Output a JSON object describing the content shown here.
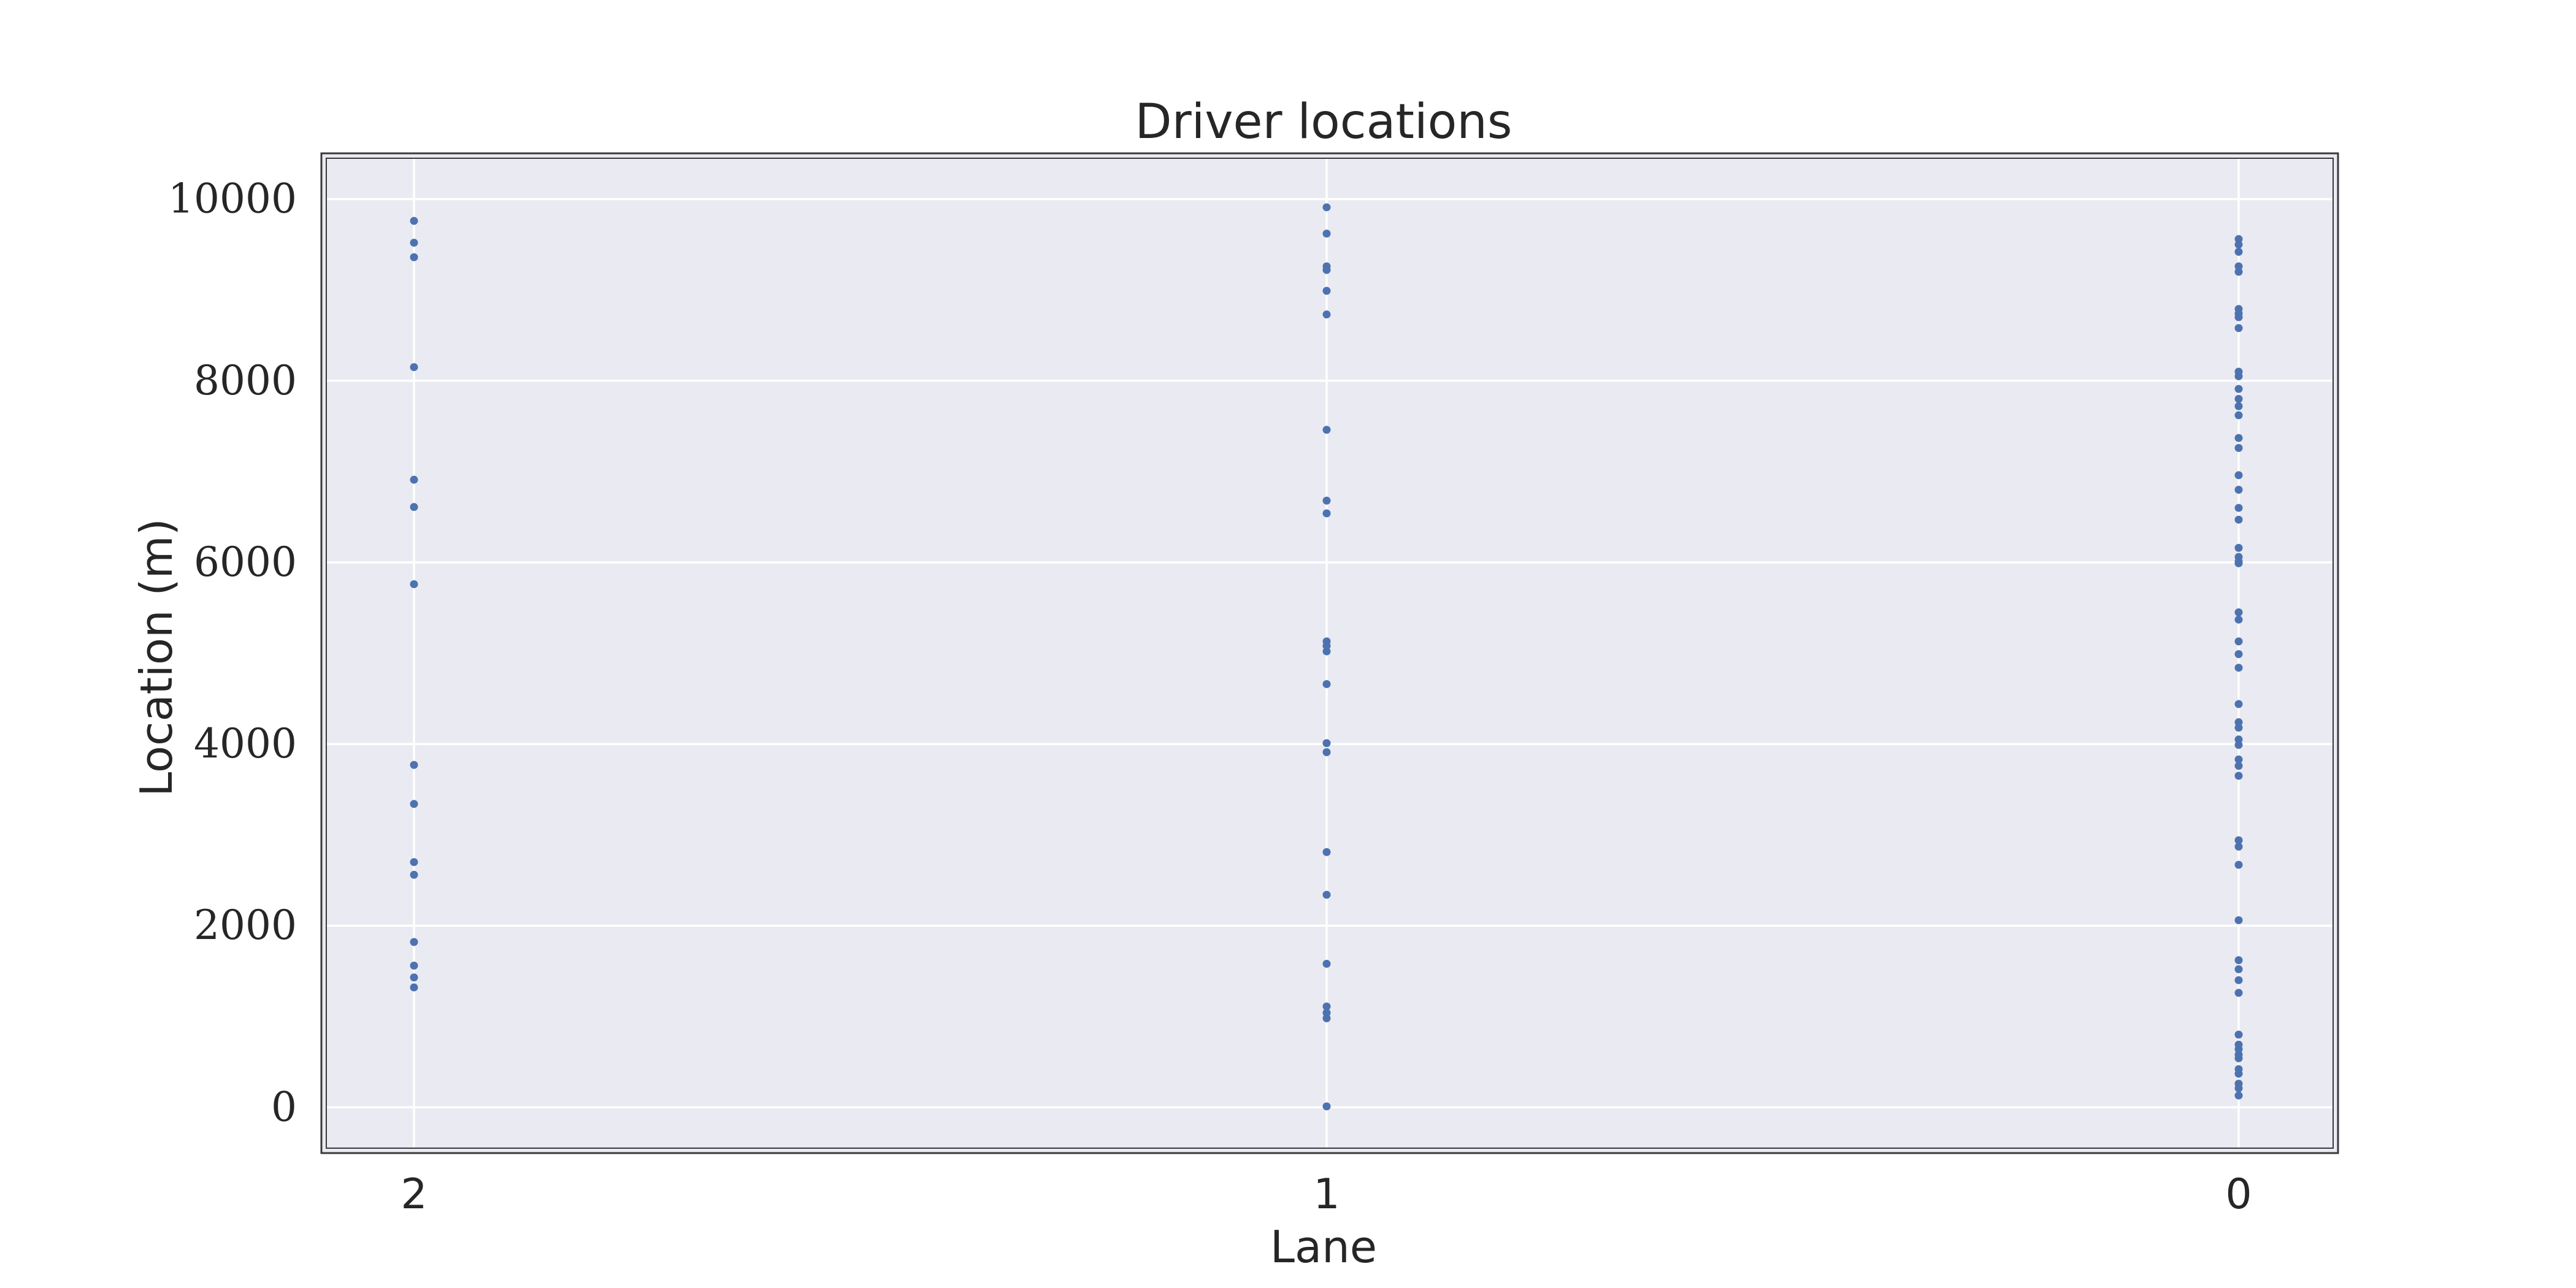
{
  "chart_data": {
    "type": "scatter",
    "title": "Driver locations",
    "xlabel": "Lane",
    "ylabel": "Location (m)",
    "x_categories": [
      "2",
      "1",
      "0"
    ],
    "yticks": [
      "0",
      "2000",
      "4000",
      "6000",
      "8000",
      "10000"
    ],
    "ylim": [
      -450,
      10450
    ],
    "grid": true,
    "colors": {
      "background": "#eaeaf2",
      "grid": "#ffffff",
      "point": "#4c72b0",
      "frame": "#3a3a3a"
    },
    "series": [
      {
        "lane": 2,
        "locations": [
          9760,
          9520,
          9360,
          8150,
          6910,
          6610,
          5760,
          3770,
          3340,
          2700,
          2560,
          1820,
          1560,
          1430,
          1320
        ]
      },
      {
        "lane": 1,
        "locations": [
          9910,
          9620,
          9260,
          9220,
          8990,
          8730,
          7460,
          6680,
          6540,
          5130,
          5080,
          5020,
          4660,
          4010,
          3910,
          2810,
          2340,
          1580,
          1110,
          1040,
          980,
          10
        ]
      },
      {
        "lane": 0,
        "locations": [
          9560,
          9500,
          9420,
          9260,
          9200,
          8790,
          8740,
          8700,
          8580,
          8100,
          8050,
          7910,
          7800,
          7720,
          7620,
          7370,
          7260,
          6960,
          6800,
          6600,
          6470,
          6160,
          6060,
          6010,
          5990,
          5450,
          5370,
          5130,
          4990,
          4840,
          4440,
          4240,
          4180,
          4050,
          3990,
          3830,
          3760,
          3650,
          2940,
          2870,
          2670,
          2060,
          1620,
          1520,
          1400,
          1260,
          800,
          690,
          640,
          580,
          540,
          420,
          370,
          260,
          210,
          130
        ]
      }
    ]
  }
}
